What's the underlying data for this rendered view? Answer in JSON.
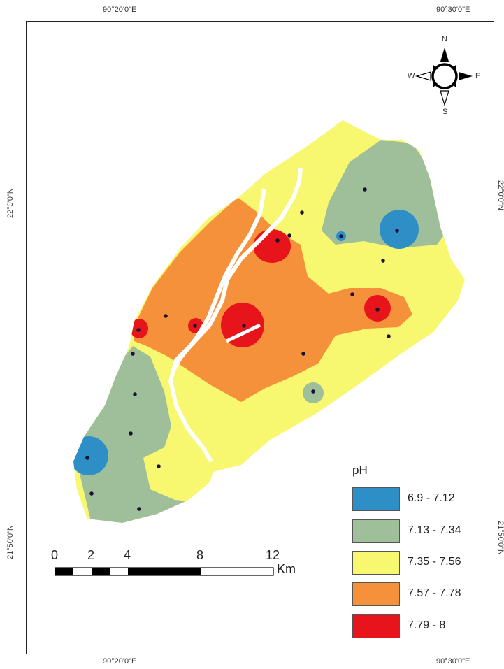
{
  "coords": {
    "top_left": "90°20'0\"E",
    "top_right": "90°30'0\"E",
    "bottom_left": "90°20'0\"E",
    "bottom_right": "90°30'0\"E",
    "left_upper": "22°0'0\"N",
    "left_lower": "21°50'0\"N",
    "right_upper": "22°0'0\"N",
    "right_lower": "21°50'0\"N"
  },
  "compass": {
    "n": "N",
    "s": "S",
    "e": "E",
    "w": "W"
  },
  "legend": {
    "title": "pH",
    "classes": [
      {
        "label": "6.9 - 7.12",
        "color": "#2e8fc7"
      },
      {
        "label": "7.13 - 7.34",
        "color": "#9fbf9b"
      },
      {
        "label": "7.35 - 7.56",
        "color": "#f7f770"
      },
      {
        "label": "7.57 - 7.78",
        "color": "#f5913a"
      },
      {
        "label": "7.79 - 8",
        "color": "#e8141b"
      }
    ]
  },
  "scalebar": {
    "ticks": [
      "0",
      "2",
      "4",
      "8",
      "12"
    ],
    "unit": "Km"
  }
}
